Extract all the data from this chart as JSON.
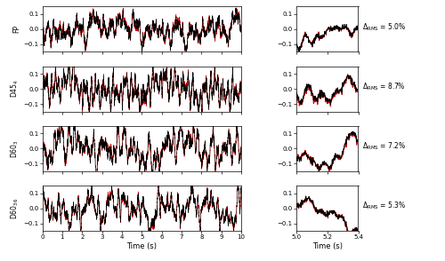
{
  "row_labels": [
    "FP",
    "D45$_{4}$",
    "D60$_{3}$",
    "D60$_{36}$"
  ],
  "delta_rms": [
    "5.0%",
    "8.7%",
    "7.2%",
    "5.3%"
  ],
  "n_rows": 4,
  "left_xlim": [
    0,
    10
  ],
  "right_xlim": [
    5.0,
    5.4
  ],
  "ylim": [
    -0.15,
    0.15
  ],
  "yticks": [
    -0.1,
    0,
    0.1
  ],
  "left_xticks": [
    0,
    1,
    2,
    3,
    4,
    5,
    6,
    7,
    8,
    9,
    10
  ],
  "right_xticks": [
    5.0,
    5.2,
    5.4
  ],
  "xlabel": "Time (s)",
  "color_original": "#000000",
  "color_reconstructed": "#cc0000",
  "n_points": 5000,
  "fig_width": 5.0,
  "fig_height": 2.94,
  "dpi": 100
}
